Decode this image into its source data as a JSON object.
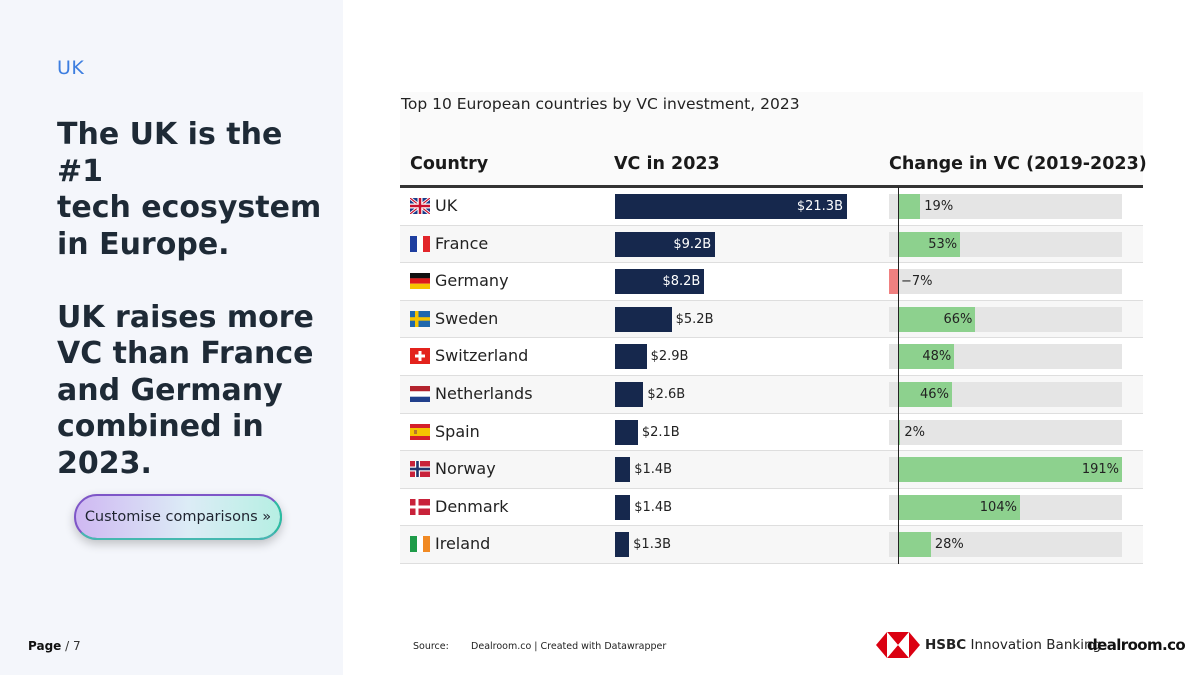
{
  "sidebar": {
    "region": "UK",
    "headline": "The UK is the #1\ntech ecosystem\nin Europe.\n\nUK raises more\nVC than France\nand Germany\ncombined in\n2023.",
    "cta_label": "Customise comparisons »"
  },
  "footer": {
    "page_current": "Page",
    "page_total": "/ 7",
    "source_label": "Source:",
    "source_text": "Dealroom.co | Created with Datawrapper",
    "hsbc_brand": "HSBC",
    "hsbc_sub": "Innovation Banking",
    "dealroom_logo": "dealroom.co"
  },
  "colors": {
    "vc_bar": "#16284d",
    "positive": "#8dd18e",
    "negative": "#f08080",
    "accent": "#3d7ee0"
  },
  "chart_data": {
    "type": "table",
    "title": "Top 10 European countries by VC investment, 2023",
    "columns": [
      "Country",
      "VC in 2023",
      "Change in VC (2019-2023)"
    ],
    "vc_max": 21.3,
    "change_range": [
      -7,
      191
    ],
    "rows": [
      {
        "country": "UK",
        "flag": "uk-flag",
        "vc": 21.3,
        "vc_label": "$21.3B",
        "change": 19,
        "change_label": "19%"
      },
      {
        "country": "France",
        "flag": "france-flag",
        "vc": 9.2,
        "vc_label": "$9.2B",
        "change": 53,
        "change_label": "53%"
      },
      {
        "country": "Germany",
        "flag": "germany-flag",
        "vc": 8.2,
        "vc_label": "$8.2B",
        "change": -7,
        "change_label": "−7%"
      },
      {
        "country": "Sweden",
        "flag": "sweden-flag",
        "vc": 5.2,
        "vc_label": "$5.2B",
        "change": 66,
        "change_label": "66%"
      },
      {
        "country": "Switzerland",
        "flag": "switzerland-flag",
        "vc": 2.9,
        "vc_label": "$2.9B",
        "change": 48,
        "change_label": "48%"
      },
      {
        "country": "Netherlands",
        "flag": "netherlands-flag",
        "vc": 2.6,
        "vc_label": "$2.6B",
        "change": 46,
        "change_label": "46%"
      },
      {
        "country": "Spain",
        "flag": "spain-flag",
        "vc": 2.1,
        "vc_label": "$2.1B",
        "change": 2,
        "change_label": "2%"
      },
      {
        "country": "Norway",
        "flag": "norway-flag",
        "vc": 1.4,
        "vc_label": "$1.4B",
        "change": 191,
        "change_label": "191%"
      },
      {
        "country": "Denmark",
        "flag": "denmark-flag",
        "vc": 1.4,
        "vc_label": "$1.4B",
        "change": 104,
        "change_label": "104%"
      },
      {
        "country": "Ireland",
        "flag": "ireland-flag",
        "vc": 1.3,
        "vc_label": "$1.3B",
        "change": 28,
        "change_label": "28%"
      }
    ]
  }
}
